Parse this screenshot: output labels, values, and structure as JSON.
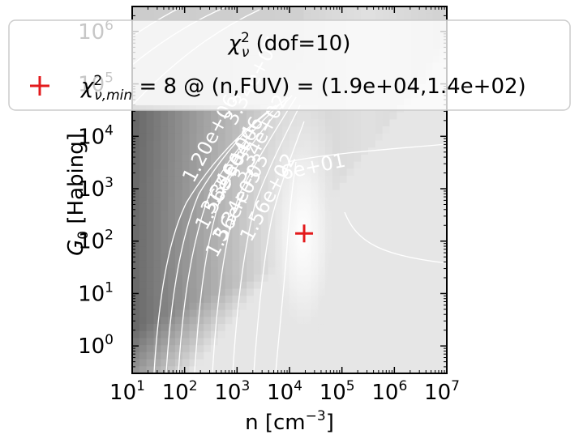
{
  "chart_data": {
    "type": "heatmap",
    "title": "",
    "xlabel": "n [cm$^{-3}$]",
    "ylabel": "$G_0$ [Habing]",
    "x_scale": "log",
    "y_scale": "log",
    "xlim": [
      10,
      10000000
    ],
    "ylim": [
      0.3,
      3000000
    ],
    "x_tick_labels": [
      "10",
      "10",
      "10",
      "10",
      "10",
      "10",
      "10"
    ],
    "x_tick_exponents": [
      "1",
      "2",
      "3",
      "4",
      "5",
      "6",
      "7"
    ],
    "x_tick_values": [
      10,
      100,
      1000,
      10000,
      100000,
      1000000,
      10000000
    ],
    "y_tick_labels": [
      "10",
      "10",
      "10",
      "10",
      "10",
      "10",
      "10"
    ],
    "y_tick_exponents": [
      "0",
      "1",
      "2",
      "3",
      "4",
      "5",
      "6"
    ],
    "y_tick_values": [
      1,
      10,
      100,
      1000,
      10000,
      100000,
      1000000
    ],
    "colormap": "gray",
    "minimum_marker": {
      "n": 19000,
      "fuv": 140,
      "color": "#e31a1c"
    },
    "contour_labels": [
      {
        "text": "3.34e+07",
        "n": 2500,
        "g0": 100000
      },
      {
        "text": "1.20e+06",
        "n": 400,
        "g0": 8000
      },
      {
        "text": "1.56e+06",
        "n": 1200,
        "g0": 3000
      },
      {
        "text": "3.34e+04",
        "n": 900,
        "g0": 2000
      },
      {
        "text": "1.56e+04",
        "n": 700,
        "g0": 1000
      },
      {
        "text": "3.34e+03",
        "n": 1500,
        "g0": 600
      },
      {
        "text": "1.56e+03",
        "n": 1100,
        "g0": 300
      },
      {
        "text": "3.34e+02",
        "n": 3500,
        "g0": 8000
      },
      {
        "text": "1.56e+02",
        "n": 5000,
        "g0": 600
      },
      {
        "text": "6e+01",
        "n": 30000,
        "g0": 2000
      }
    ],
    "legend": {
      "title": "$\\chi^2_\\nu$ (dof=10)",
      "entries": [
        {
          "label": "$\\chi^2_{\\nu,min}$ = 8 @ (n,FUV) = (1.9e+04,1.4e+02)",
          "marker": "+",
          "color": "#e31a1c"
        }
      ],
      "placement": "top"
    }
  }
}
